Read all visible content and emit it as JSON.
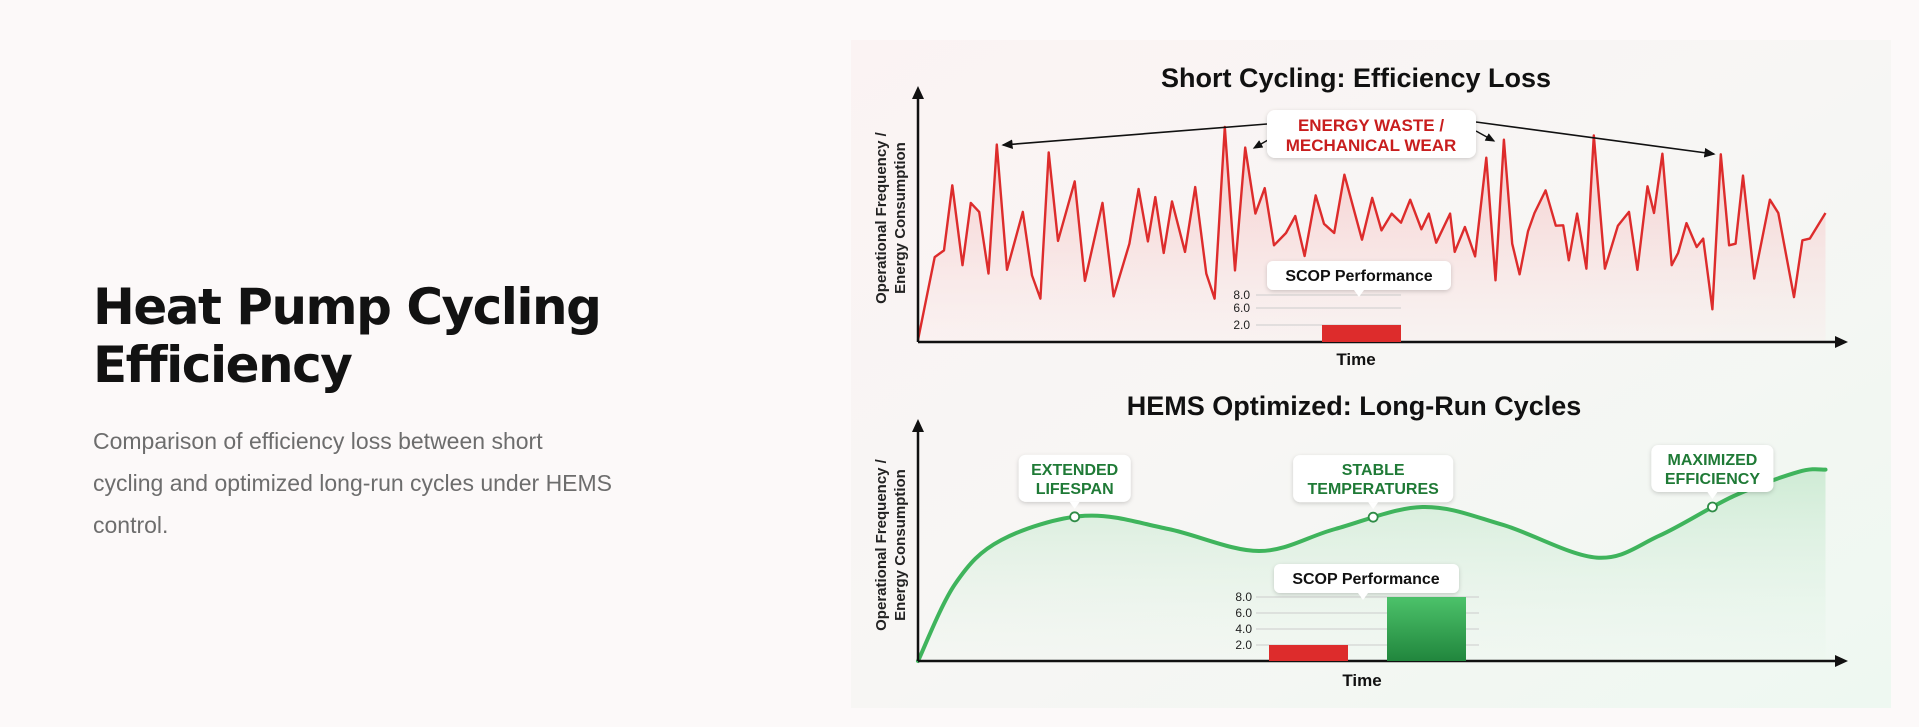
{
  "header": {
    "title": "Heat Pump Cycling Efficiency",
    "subtitle": "Comparison of efficiency loss between short cycling and optimized long-run cycles under HEMS control."
  },
  "colors": {
    "red": "#dd2c2c",
    "green": "#3fb45c",
    "green_text": "#1f7a36",
    "red_text": "#c81e1e"
  },
  "chart_data": [
    {
      "type": "line",
      "title": "Short Cycling: Efficiency Loss",
      "xlabel": "Time",
      "ylabel": "Operational Frequency / Energy Consumption",
      "grid": false,
      "series": [
        {
          "points": [
            [
              0,
              1
            ],
            [
              1.8,
              39.5
            ],
            [
              2.8,
              42.6
            ],
            [
              3.7,
              72.9
            ],
            [
              4.8,
              35.7
            ],
            [
              5.7,
              64.7
            ],
            [
              6.6,
              60.5
            ],
            [
              7.6,
              31.8
            ],
            [
              8.5,
              91.8
            ],
            [
              9.6,
              33.6
            ],
            [
              11.3,
              60.5
            ],
            [
              12.3,
              31
            ],
            [
              13.2,
              20.2
            ],
            [
              14.1,
              88.2
            ],
            [
              15.1,
              47
            ],
            [
              16.9,
              74.7
            ],
            [
              18,
              28.4
            ],
            [
              19.9,
              64.7
            ],
            [
              21.1,
              21.2
            ],
            [
              22.8,
              45.7
            ],
            [
              23.8,
              71.2
            ],
            [
              24.8,
              46.8
            ],
            [
              25.6,
              67.4
            ],
            [
              26.5,
              41.4
            ],
            [
              27.4,
              65.4
            ],
            [
              28.8,
              41.9
            ],
            [
              29.9,
              72.1
            ],
            [
              31.1,
              31.8
            ],
            [
              32,
              20.2
            ],
            [
              33.1,
              100
            ],
            [
              34.2,
              33.3
            ],
            [
              35.3,
              90.4
            ],
            [
              36.4,
              59.7
            ],
            [
              37.4,
              71.6
            ],
            [
              38.4,
              45
            ],
            [
              39.7,
              50.7
            ],
            [
              40.7,
              58.6
            ],
            [
              41.7,
              40
            ],
            [
              42.9,
              68.2
            ],
            [
              43.8,
              55
            ],
            [
              44.9,
              50.7
            ],
            [
              46,
              77.8
            ],
            [
              47.9,
              47.6
            ],
            [
              49,
              67
            ],
            [
              50,
              51.9
            ],
            [
              51.1,
              59.7
            ],
            [
              52.1,
              55.5
            ],
            [
              53.1,
              66.2
            ],
            [
              54.3,
              52.4
            ],
            [
              55.1,
              59.7
            ],
            [
              55.9,
              46.2
            ],
            [
              57.4,
              59.7
            ],
            [
              57.9,
              41.9
            ],
            [
              59,
              53.5
            ],
            [
              60.1,
              39.8
            ],
            [
              61.3,
              85.7
            ],
            [
              62.3,
              28.7
            ],
            [
              63.2,
              94.1
            ],
            [
              64.1,
              45.7
            ],
            [
              64.9,
              31.5
            ],
            [
              65.8,
              51.5
            ],
            [
              66.5,
              60
            ],
            [
              67.7,
              70.5
            ],
            [
              68.8,
              54.1
            ],
            [
              69.6,
              54.3
            ],
            [
              70.2,
              38
            ],
            [
              71.1,
              59.7
            ],
            [
              72.1,
              34.1
            ],
            [
              72.9,
              96.1
            ],
            [
              74.1,
              34.1
            ],
            [
              75.5,
              54.1
            ],
            [
              76.7,
              60.5
            ],
            [
              77.6,
              33.6
            ],
            [
              78.7,
              72.4
            ],
            [
              79.4,
              60
            ],
            [
              80.3,
              87.6
            ],
            [
              81.3,
              35.7
            ],
            [
              82,
              41.4
            ],
            [
              82.9,
              55.3
            ],
            [
              84,
              44.2
            ],
            [
              84.7,
              48.1
            ],
            [
              85.7,
              15.2
            ],
            [
              86.6,
              87.3
            ],
            [
              87.5,
              45
            ],
            [
              88.2,
              45.7
            ],
            [
              89,
              77.4
            ],
            [
              90.2,
              29.5
            ],
            [
              91.9,
              66.2
            ],
            [
              92.8,
              60
            ],
            [
              94.5,
              20.9
            ],
            [
              95.4,
              47.3
            ],
            [
              96.2,
              48.1
            ],
            [
              97.9,
              60
            ]
          ]
        }
      ],
      "annotation": "ENERGY WASTE / MECHANICAL WEAR",
      "inset": {
        "type": "bar",
        "title": "SCOP Performance",
        "tick_labels": [
          "8.0",
          "6.0",
          "2.0"
        ],
        "bars": [
          {
            "value": 2.0,
            "color": "#dd2c2c"
          }
        ]
      }
    },
    {
      "type": "line",
      "title": "HEMS Optimized: Long-Run Cycles",
      "xlabel": "Time",
      "ylabel": "Operational Frequency / Energy Consumption",
      "grid": false,
      "series": [
        {
          "points": [
            [
              0,
              0
            ],
            [
              4,
              35
            ],
            [
              9,
              55
            ],
            [
              18,
              66
            ],
            [
              27,
              60
            ],
            [
              36.8,
              50
            ],
            [
              45,
              60
            ],
            [
              54.4,
              70
            ],
            [
              63,
              62
            ],
            [
              73.2,
              47
            ],
            [
              80,
              57
            ],
            [
              88,
              75
            ],
            [
              95,
              86
            ],
            [
              97.9,
              87
            ]
          ]
        }
      ],
      "annotations": [
        {
          "label": "EXTENDED LIFESPAN",
          "lines": [
            "EXTENDED",
            "LIFESPAN"
          ],
          "t": 16.9
        },
        {
          "label": "STABLE TEMPERATURES",
          "lines": [
            "STABLE",
            "TEMPERATURES"
          ],
          "t": 49.1
        },
        {
          "label": "MAXIMIZED EFFICIENCY",
          "lines": [
            "MAXIMIZED",
            "EFFICIENCY"
          ],
          "t": 85.7
        }
      ],
      "inset": {
        "type": "bar",
        "title": "SCOP Performance",
        "tick_labels": [
          "8.0",
          "6.0",
          "4.0",
          "2.0"
        ],
        "bars": [
          {
            "value": 2.0,
            "color": "#dd2c2c"
          },
          {
            "value": 8.0,
            "color": "#3fb45c"
          }
        ]
      }
    }
  ]
}
